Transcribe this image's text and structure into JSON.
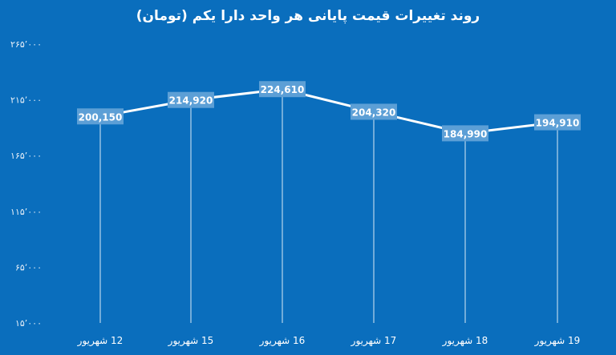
{
  "chart_data": {
    "type": "line",
    "title": "روند تغییرات قیمت پایانی هر واحد دارا یکم (تومان)",
    "categories": [
      "12 شهریور",
      "15 شهریور",
      "16 شهریور",
      "17 شهریور",
      "18 شهریور",
      "19 شهریور"
    ],
    "values": [
      200150,
      214920,
      224610,
      204320,
      184990,
      194910
    ],
    "value_labels": [
      "200,150",
      "214,920",
      "224,610",
      "204,320",
      "184,990",
      "194,910"
    ],
    "y_ticks": [
      15000,
      65000,
      115000,
      165000,
      215000,
      265000
    ],
    "y_tick_labels": [
      "۱۵٬۰۰۰",
      "۶۵٬۰۰۰",
      "۱۱۵٬۰۰۰",
      "۱۶۵٬۰۰۰",
      "۲۱۵٬۰۰۰",
      "۲۶۵٬۰۰۰"
    ],
    "ylim": [
      15000,
      265000
    ],
    "grid": false,
    "drop_lines": true,
    "colors": {
      "background": "#0a6ebd",
      "line": "#ffffff",
      "label_box": "#5c9fd6",
      "text": "#ffffff",
      "axis_text": "#e8f0f8"
    }
  }
}
